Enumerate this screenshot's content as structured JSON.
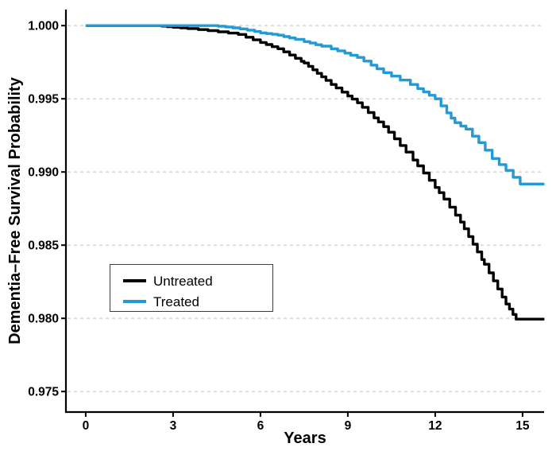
{
  "chart_data": {
    "type": "line",
    "subtype": "kaplan-meier-step",
    "xlabel": "Years",
    "ylabel": "Dementia–Free Survival Probability",
    "xlim": [
      -0.68,
      15.74
    ],
    "ylim": [
      0.9736,
      1.0011
    ],
    "x_ticks": [
      0,
      3,
      6,
      9,
      12,
      15
    ],
    "x_tick_labels": [
      "0",
      "3",
      "6",
      "9",
      "12",
      "15"
    ],
    "y_ticks": [
      0.975,
      0.98,
      0.985,
      0.99,
      0.995,
      1.0
    ],
    "y_tick_labels": [
      "0.975",
      "0.980",
      "0.985",
      "0.990",
      "0.995",
      "1.000"
    ],
    "grid": "horizontal-dashed",
    "legend_position": "inside-lower-left",
    "colors": {
      "untreated": "#000000",
      "treated": "#2399d6",
      "gridline": "#d0d0d0",
      "axis": "#000000",
      "legend_border": "#3d3d3d"
    },
    "series": [
      {
        "name": "Untreated",
        "color": "#000000",
        "points": [
          [
            0.0,
            1.0
          ],
          [
            2.4,
            1.0
          ],
          [
            2.6,
            0.99997
          ],
          [
            2.8,
            0.99993
          ],
          [
            3.0,
            0.99989
          ],
          [
            3.25,
            0.99985
          ],
          [
            3.5,
            0.9998
          ],
          [
            3.87,
            0.99973
          ],
          [
            4.2,
            0.99966
          ],
          [
            4.55,
            0.99958
          ],
          [
            4.9,
            0.99949
          ],
          [
            5.24,
            0.9994
          ],
          [
            5.5,
            0.99921
          ],
          [
            5.75,
            0.99903
          ],
          [
            6.0,
            0.99885
          ],
          [
            6.2,
            0.99871
          ],
          [
            6.4,
            0.99856
          ],
          [
            6.6,
            0.99842
          ],
          [
            6.8,
            0.99821
          ],
          [
            7.0,
            0.99799
          ],
          [
            7.2,
            0.99777
          ],
          [
            7.4,
            0.99756
          ],
          [
            7.5,
            0.99745
          ],
          [
            7.65,
            0.99722
          ],
          [
            7.8,
            0.99698
          ],
          [
            7.95,
            0.99674
          ],
          [
            8.1,
            0.9965
          ],
          [
            8.25,
            0.99626
          ],
          [
            8.43,
            0.99598
          ],
          [
            8.6,
            0.99574
          ],
          [
            8.8,
            0.99546
          ],
          [
            9.0,
            0.99519
          ],
          [
            9.15,
            0.99498
          ],
          [
            9.33,
            0.99473
          ],
          [
            9.5,
            0.99442
          ],
          [
            9.7,
            0.99406
          ],
          [
            9.9,
            0.9937
          ],
          [
            10.05,
            0.99342
          ],
          [
            10.23,
            0.9931
          ],
          [
            10.4,
            0.99272
          ],
          [
            10.6,
            0.99227
          ],
          [
            10.8,
            0.99181
          ],
          [
            11.0,
            0.99136
          ],
          [
            11.24,
            0.99082
          ],
          [
            11.4,
            0.99042
          ],
          [
            11.6,
            0.98993
          ],
          [
            11.8,
            0.98943
          ],
          [
            12.0,
            0.98894
          ],
          [
            12.14,
            0.98859
          ],
          [
            12.3,
            0.98815
          ],
          [
            12.5,
            0.9876
          ],
          [
            12.7,
            0.98705
          ],
          [
            12.87,
            0.98658
          ],
          [
            13.0,
            0.98612
          ],
          [
            13.15,
            0.98559
          ],
          [
            13.3,
            0.98507
          ],
          [
            13.45,
            0.98454
          ],
          [
            13.6,
            0.98402
          ],
          [
            13.69,
            0.9837
          ],
          [
            13.85,
            0.98311
          ],
          [
            14.0,
            0.98256
          ],
          [
            14.15,
            0.98201
          ],
          [
            14.3,
            0.98146
          ],
          [
            14.43,
            0.98098
          ],
          [
            14.55,
            0.98063
          ],
          [
            14.67,
            0.98027
          ],
          [
            14.78,
            0.97995
          ],
          [
            15.75,
            0.97995
          ]
        ]
      },
      {
        "name": "Treated",
        "color": "#2399d6",
        "points": [
          [
            0.0,
            1.0
          ],
          [
            4.3,
            1.0
          ],
          [
            4.55,
            0.99996
          ],
          [
            4.8,
            0.99991
          ],
          [
            5.05,
            0.99985
          ],
          [
            5.3,
            0.99978
          ],
          [
            5.55,
            0.99969
          ],
          [
            5.8,
            0.9996
          ],
          [
            6.0,
            0.99951
          ],
          [
            6.2,
            0.99946
          ],
          [
            6.4,
            0.99941
          ],
          [
            6.6,
            0.99935
          ],
          [
            6.8,
            0.99925
          ],
          [
            7.0,
            0.99916
          ],
          [
            7.2,
            0.99906
          ],
          [
            7.5,
            0.99891
          ],
          [
            7.7,
            0.99881
          ],
          [
            7.9,
            0.9987
          ],
          [
            8.1,
            0.9986
          ],
          [
            8.43,
            0.99842
          ],
          [
            8.65,
            0.99828
          ],
          [
            8.9,
            0.99812
          ],
          [
            9.1,
            0.99798
          ],
          [
            9.33,
            0.99783
          ],
          [
            9.55,
            0.99758
          ],
          [
            9.8,
            0.9973
          ],
          [
            10.0,
            0.99705
          ],
          [
            10.23,
            0.99679
          ],
          [
            10.5,
            0.99655
          ],
          [
            10.8,
            0.99628
          ],
          [
            11.15,
            0.99598
          ],
          [
            11.4,
            0.9957
          ],
          [
            11.6,
            0.99547
          ],
          [
            11.8,
            0.99524
          ],
          [
            12.0,
            0.995
          ],
          [
            12.2,
            0.99452
          ],
          [
            12.4,
            0.99404
          ],
          [
            12.55,
            0.99368
          ],
          [
            12.68,
            0.99337
          ],
          [
            12.88,
            0.99314
          ],
          [
            13.06,
            0.99293
          ],
          [
            13.28,
            0.99245
          ],
          [
            13.5,
            0.99201
          ],
          [
            13.72,
            0.99149
          ],
          [
            13.96,
            0.99092
          ],
          [
            14.2,
            0.99051
          ],
          [
            14.43,
            0.99011
          ],
          [
            14.68,
            0.98964
          ],
          [
            14.92,
            0.98918
          ],
          [
            15.75,
            0.98918
          ]
        ]
      }
    ]
  }
}
